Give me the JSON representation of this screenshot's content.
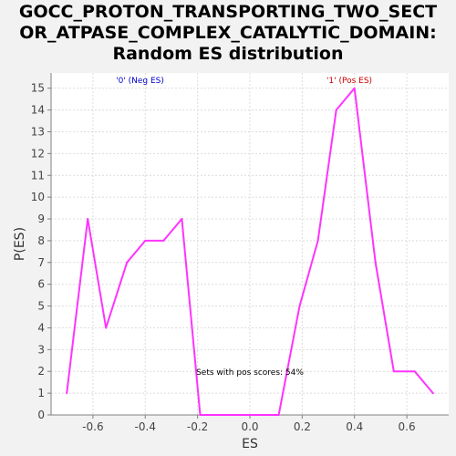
{
  "chart_data": {
    "type": "line",
    "title": [
      "GOCC_PROTON_TRANSPORTING_TWO_SECT",
      "OR_ATPASE_COMPLEX_CATALYTIC_DOMAIN:",
      "Random ES distribution"
    ],
    "xlabel": "ES",
    "ylabel": "P(ES)",
    "xlim": [
      -0.76,
      0.76
    ],
    "ylim": [
      0,
      15.7
    ],
    "xticks": [
      -0.6,
      -0.4,
      -0.2,
      0.0,
      0.2,
      0.4,
      0.6
    ],
    "xtick_labels": [
      "-0.6",
      "-0.4",
      "-0.2",
      "0.0",
      "0.2",
      "0.4",
      "0.6"
    ],
    "yticks": [
      0,
      1,
      2,
      3,
      4,
      5,
      6,
      7,
      8,
      9,
      10,
      11,
      12,
      13,
      14,
      15
    ],
    "grid": true,
    "series": [
      {
        "color": "#ff33ff",
        "x": [
          -0.7,
          -0.62,
          -0.55,
          -0.47,
          -0.4,
          -0.33,
          -0.26,
          -0.19,
          -0.12,
          -0.04,
          0.04,
          0.11,
          0.19,
          0.26,
          0.33,
          0.4,
          0.48,
          0.55,
          0.63,
          0.7
        ],
        "y": [
          1,
          9,
          4,
          7,
          8,
          8,
          9,
          0,
          0,
          0,
          0,
          0,
          5,
          8,
          14,
          15,
          7,
          2,
          2,
          1
        ]
      }
    ],
    "annotations": [
      {
        "text": "'0' (Neg ES)",
        "color": "#0000cc",
        "x": -0.42
      },
      {
        "text": "'1' (Pos ES)",
        "color": "#cc0000",
        "x": 0.38
      },
      {
        "text": "Sets with pos scores: 54%",
        "color": "#000000",
        "x": 0.0
      }
    ]
  }
}
